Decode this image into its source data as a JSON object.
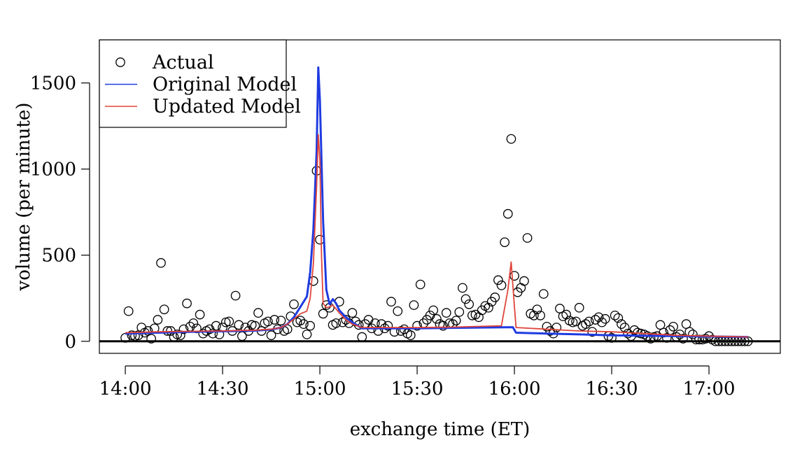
{
  "chart_data": {
    "type": "line",
    "title": "",
    "xlabel": "exchange time (ET)",
    "ylabel": "volume (per minute)",
    "x_unit": "minutes after 14:00 ET",
    "xlim": [
      -8,
      202
    ],
    "ylim": [
      -70,
      1750
    ],
    "x_ticks": [
      {
        "value": 0,
        "label": "14:00"
      },
      {
        "value": 30,
        "label": "14:30"
      },
      {
        "value": 60,
        "label": "15:00"
      },
      {
        "value": 90,
        "label": "15:30"
      },
      {
        "value": 120,
        "label": "16:00"
      },
      {
        "value": 150,
        "label": "16:30"
      },
      {
        "value": 180,
        "label": "17:00"
      }
    ],
    "y_ticks": [
      {
        "value": 0,
        "label": "0"
      },
      {
        "value": 500,
        "label": "500"
      },
      {
        "value": 1000,
        "label": "1000"
      },
      {
        "value": 1500,
        "label": "1500"
      }
    ],
    "baseline": 0,
    "legend": {
      "position": "top-left",
      "entries": [
        {
          "label": "Actual",
          "marker": "circle",
          "color": "#000000"
        },
        {
          "label": "Original Model",
          "marker": "line",
          "color": "#1f3be0"
        },
        {
          "label": "Updated Model",
          "marker": "line",
          "color": "#e0443a"
        }
      ]
    },
    "series": [
      {
        "name": "Actual",
        "kind": "scatter",
        "color": "#000000",
        "points": [
          [
            0,
            20
          ],
          [
            1,
            175
          ],
          [
            2,
            35
          ],
          [
            3,
            30
          ],
          [
            4,
            35
          ],
          [
            5,
            80
          ],
          [
            6,
            50
          ],
          [
            7,
            60
          ],
          [
            8,
            15
          ],
          [
            9,
            75
          ],
          [
            10,
            125
          ],
          [
            11,
            455
          ],
          [
            12,
            185
          ],
          [
            13,
            60
          ],
          [
            14,
            60
          ],
          [
            15,
            25
          ],
          [
            16,
            40
          ],
          [
            17,
            35
          ],
          [
            18,
            70
          ],
          [
            19,
            220
          ],
          [
            20,
            85
          ],
          [
            21,
            105
          ],
          [
            22,
            75
          ],
          [
            23,
            155
          ],
          [
            24,
            45
          ],
          [
            25,
            60
          ],
          [
            26,
            70
          ],
          [
            27,
            45
          ],
          [
            28,
            90
          ],
          [
            29,
            40
          ],
          [
            30,
            80
          ],
          [
            31,
            110
          ],
          [
            32,
            115
          ],
          [
            33,
            60
          ],
          [
            34,
            265
          ],
          [
            35,
            95
          ],
          [
            36,
            30
          ],
          [
            37,
            80
          ],
          [
            38,
            60
          ],
          [
            39,
            95
          ],
          [
            40,
            90
          ],
          [
            41,
            165
          ],
          [
            42,
            60
          ],
          [
            43,
            105
          ],
          [
            44,
            115
          ],
          [
            45,
            35
          ],
          [
            46,
            125
          ],
          [
            47,
            70
          ],
          [
            48,
            120
          ],
          [
            49,
            60
          ],
          [
            50,
            70
          ],
          [
            51,
            145
          ],
          [
            52,
            215
          ],
          [
            53,
            110
          ],
          [
            54,
            120
          ],
          [
            55,
            100
          ],
          [
            56,
            40
          ],
          [
            57,
            90
          ],
          [
            58,
            350
          ],
          [
            59,
            990
          ],
          [
            60,
            590
          ],
          [
            61,
            160
          ],
          [
            62,
            210
          ],
          [
            63,
            195
          ],
          [
            64,
            95
          ],
          [
            65,
            105
          ],
          [
            66,
            230
          ],
          [
            67,
            110
          ],
          [
            68,
            125
          ],
          [
            69,
            105
          ],
          [
            70,
            165
          ],
          [
            71,
            115
          ],
          [
            72,
            95
          ],
          [
            73,
            25
          ],
          [
            74,
            100
          ],
          [
            75,
            125
          ],
          [
            76,
            75
          ],
          [
            77,
            105
          ],
          [
            78,
            60
          ],
          [
            79,
            100
          ],
          [
            80,
            75
          ],
          [
            81,
            90
          ],
          [
            82,
            230
          ],
          [
            83,
            55
          ],
          [
            84,
            175
          ],
          [
            85,
            60
          ],
          [
            86,
            70
          ],
          [
            87,
            45
          ],
          [
            88,
            35
          ],
          [
            89,
            210
          ],
          [
            90,
            90
          ],
          [
            91,
            330
          ],
          [
            92,
            105
          ],
          [
            93,
            125
          ],
          [
            94,
            150
          ],
          [
            95,
            180
          ],
          [
            96,
            130
          ],
          [
            97,
            100
          ],
          [
            98,
            90
          ],
          [
            99,
            165
          ],
          [
            100,
            105
          ],
          [
            101,
            100
          ],
          [
            102,
            120
          ],
          [
            103,
            170
          ],
          [
            104,
            310
          ],
          [
            105,
            245
          ],
          [
            106,
            215
          ],
          [
            107,
            150
          ],
          [
            108,
            155
          ],
          [
            109,
            140
          ],
          [
            110,
            180
          ],
          [
            111,
            205
          ],
          [
            112,
            195
          ],
          [
            113,
            230
          ],
          [
            114,
            255
          ],
          [
            115,
            355
          ],
          [
            116,
            325
          ],
          [
            117,
            575
          ],
          [
            118,
            740
          ],
          [
            119,
            1175
          ],
          [
            120,
            380
          ],
          [
            121,
            285
          ],
          [
            122,
            310
          ],
          [
            123,
            350
          ],
          [
            124,
            600
          ],
          [
            125,
            160
          ],
          [
            126,
            150
          ],
          [
            127,
            185
          ],
          [
            128,
            150
          ],
          [
            129,
            275
          ],
          [
            130,
            85
          ],
          [
            131,
            60
          ],
          [
            132,
            45
          ],
          [
            133,
            80
          ],
          [
            134,
            190
          ],
          [
            135,
            145
          ],
          [
            136,
            155
          ],
          [
            137,
            120
          ],
          [
            138,
            110
          ],
          [
            139,
            115
          ],
          [
            140,
            195
          ],
          [
            141,
            90
          ],
          [
            142,
            100
          ],
          [
            143,
            115
          ],
          [
            144,
            55
          ],
          [
            145,
            125
          ],
          [
            146,
            140
          ],
          [
            147,
            110
          ],
          [
            148,
            130
          ],
          [
            149,
            30
          ],
          [
            150,
            20
          ],
          [
            151,
            150
          ],
          [
            152,
            135
          ],
          [
            153,
            100
          ],
          [
            154,
            80
          ],
          [
            155,
            45
          ],
          [
            156,
            30
          ],
          [
            157,
            65
          ],
          [
            158,
            50
          ],
          [
            159,
            45
          ],
          [
            160,
            40
          ],
          [
            161,
            30
          ],
          [
            162,
            15
          ],
          [
            163,
            25
          ],
          [
            164,
            30
          ],
          [
            165,
            95
          ],
          [
            166,
            50
          ],
          [
            167,
            20
          ],
          [
            168,
            65
          ],
          [
            169,
            85
          ],
          [
            170,
            25
          ],
          [
            171,
            40
          ],
          [
            172,
            15
          ],
          [
            173,
            100
          ],
          [
            174,
            55
          ],
          [
            175,
            40
          ],
          [
            176,
            10
          ],
          [
            177,
            10
          ],
          [
            178,
            10
          ],
          [
            179,
            15
          ],
          [
            180,
            30
          ],
          [
            181,
            10
          ],
          [
            182,
            0
          ],
          [
            183,
            0
          ],
          [
            184,
            0
          ],
          [
            185,
            0
          ],
          [
            186,
            0
          ],
          [
            187,
            0
          ],
          [
            188,
            0
          ],
          [
            189,
            0
          ],
          [
            190,
            0
          ],
          [
            191,
            0
          ],
          [
            192,
            0
          ]
        ]
      },
      {
        "name": "Original Model",
        "kind": "line",
        "color": "#1f3be0",
        "points": [
          [
            0,
            45
          ],
          [
            10,
            50
          ],
          [
            20,
            55
          ],
          [
            30,
            58
          ],
          [
            40,
            62
          ],
          [
            45,
            68
          ],
          [
            48,
            80
          ],
          [
            50,
            100
          ],
          [
            52,
            140
          ],
          [
            54,
            200
          ],
          [
            56,
            260
          ],
          [
            57,
            400
          ],
          [
            58,
            650
          ],
          [
            59,
            1100
          ],
          [
            59.5,
            1590
          ],
          [
            60,
            1400
          ],
          [
            61,
            700
          ],
          [
            62,
            300
          ],
          [
            63,
            215
          ],
          [
            64,
            245
          ],
          [
            65,
            220
          ],
          [
            66,
            180
          ],
          [
            68,
            140
          ],
          [
            70,
            110
          ],
          [
            73,
            75
          ],
          [
            80,
            75
          ],
          [
            90,
            75
          ],
          [
            100,
            78
          ],
          [
            110,
            80
          ],
          [
            119.5,
            82
          ],
          [
            120.5,
            50
          ],
          [
            130,
            45
          ],
          [
            140,
            40
          ],
          [
            150,
            35
          ],
          [
            160,
            32
          ],
          [
            170,
            30
          ],
          [
            180,
            28
          ],
          [
            192,
            25
          ]
        ]
      },
      {
        "name": "Updated Model",
        "kind": "line",
        "color": "#e0443a",
        "points": [
          [
            0,
            50
          ],
          [
            10,
            55
          ],
          [
            20,
            58
          ],
          [
            30,
            60
          ],
          [
            40,
            65
          ],
          [
            45,
            70
          ],
          [
            48,
            80
          ],
          [
            50,
            100
          ],
          [
            52,
            130
          ],
          [
            54,
            160
          ],
          [
            56,
            175
          ],
          [
            57,
            250
          ],
          [
            58,
            450
          ],
          [
            59,
            900
          ],
          [
            59.5,
            1200
          ],
          [
            60,
            1050
          ],
          [
            60.5,
            500
          ],
          [
            61,
            220
          ],
          [
            62,
            195
          ],
          [
            63,
            200
          ],
          [
            64,
            210
          ],
          [
            66,
            165
          ],
          [
            68,
            125
          ],
          [
            70,
            100
          ],
          [
            73,
            80
          ],
          [
            80,
            80
          ],
          [
            90,
            80
          ],
          [
            100,
            82
          ],
          [
            110,
            87
          ],
          [
            116,
            90
          ],
          [
            118,
            300
          ],
          [
            119,
            460
          ],
          [
            120,
            200
          ],
          [
            120.5,
            80
          ],
          [
            130,
            70
          ],
          [
            140,
            60
          ],
          [
            150,
            55
          ],
          [
            160,
            45
          ],
          [
            170,
            35
          ],
          [
            180,
            30
          ],
          [
            192,
            25
          ]
        ]
      }
    ]
  }
}
